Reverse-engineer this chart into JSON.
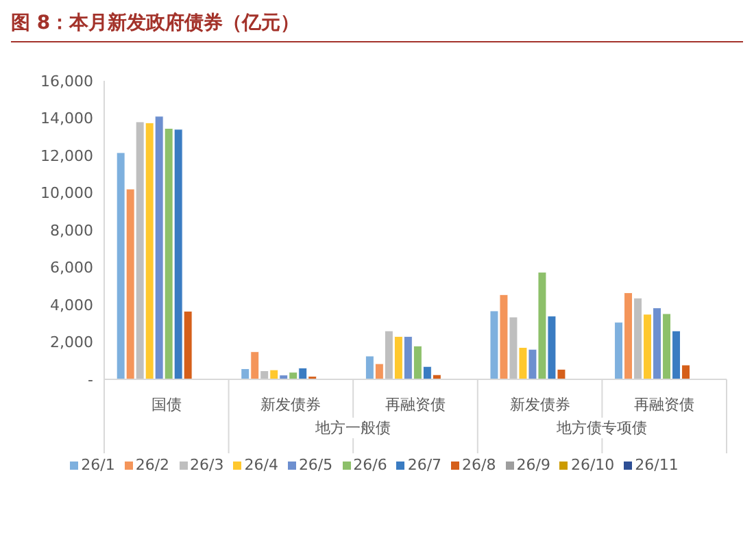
{
  "chart_data": {
    "type": "bar",
    "title": "图 8：本月新发政府债券（亿元）",
    "categories": [
      "国债",
      "新发债券",
      "再融资债",
      "新发债券",
      "再融资债"
    ],
    "annotations": [
      "地方一般债",
      "地方债专项债"
    ],
    "series": [
      {
        "name": "26/1",
        "color": "#7eb0de",
        "values": [
          12150,
          570,
          1250,
          3670,
          3060
        ]
      },
      {
        "name": "26/2",
        "color": "#f4955a",
        "values": [
          10200,
          1480,
          840,
          4540,
          4640
        ]
      },
      {
        "name": "26/3",
        "color": "#bfbfbf",
        "values": [
          13800,
          460,
          2600,
          3340,
          4360
        ]
      },
      {
        "name": "26/4",
        "color": "#ffc82e",
        "values": [
          13750,
          510,
          2300,
          1710,
          3490
        ]
      },
      {
        "name": "26/5",
        "color": "#6d8fcf",
        "values": [
          14100,
          230,
          2300,
          1610,
          3830
        ]
      },
      {
        "name": "26/6",
        "color": "#8dc06a",
        "values": [
          13450,
          380,
          1790,
          5740,
          3520
        ]
      },
      {
        "name": "26/7",
        "color": "#3a7cc2",
        "values": [
          13400,
          610,
          690,
          3390,
          2600
        ]
      },
      {
        "name": "26/8",
        "color": "#d55f1a",
        "values": [
          3650,
          160,
          250,
          540,
          770
        ]
      },
      {
        "name": "26/9",
        "color": "#9e9e9e",
        "values": [
          null,
          null,
          null,
          null,
          null
        ]
      },
      {
        "name": "26/10",
        "color": "#cc9b00",
        "values": [
          null,
          null,
          null,
          null,
          null
        ]
      },
      {
        "name": "26/11",
        "color": "#2e4f95",
        "values": [
          null,
          null,
          null,
          null,
          null
        ]
      }
    ],
    "ylim": [
      0,
      16000
    ],
    "yticks": [
      {
        "value": 0,
        "label": "-"
      },
      {
        "value": 2000,
        "label": "2,000"
      },
      {
        "value": 4000,
        "label": "4,000"
      },
      {
        "value": 6000,
        "label": "6,000"
      },
      {
        "value": 8000,
        "label": "8,000"
      },
      {
        "value": 10000,
        "label": "10,000"
      },
      {
        "value": 12000,
        "label": "12,000"
      },
      {
        "value": 14000,
        "label": "14,000"
      },
      {
        "value": 16000,
        "label": "16,000"
      }
    ],
    "grid": false,
    "legend": "bottom"
  }
}
